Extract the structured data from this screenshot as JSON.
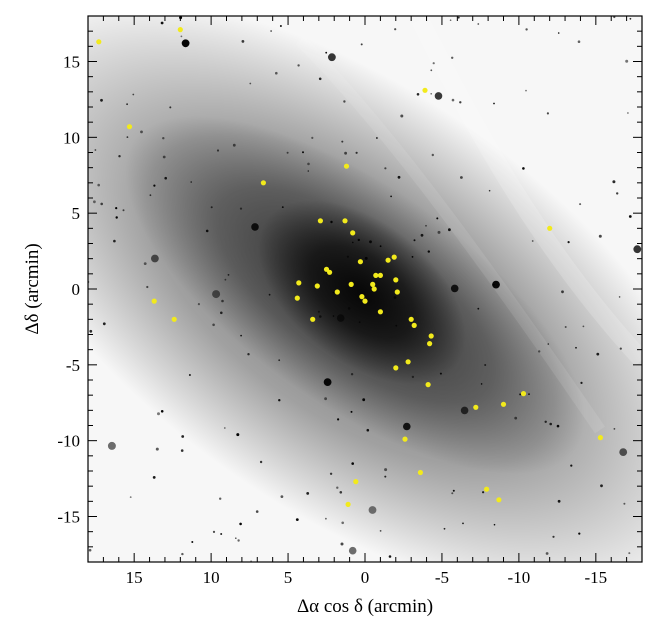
{
  "chart_data": {
    "type": "scatter",
    "title": "",
    "xlabel": "Δα cos δ  (arcmin)",
    "ylabel": "Δδ  (arcmin)",
    "xlim": [
      18,
      -18
    ],
    "ylim": [
      -18,
      18
    ],
    "x_ticks": [
      15,
      10,
      5,
      0,
      -5,
      -10,
      -15
    ],
    "y_ticks": [
      15,
      10,
      5,
      0,
      -5,
      -10,
      -15
    ],
    "x_tick_labels": [
      "15",
      "10",
      "5",
      "0",
      "-5",
      "-10",
      "-15"
    ],
    "y_tick_labels": [
      "15",
      "10",
      "5",
      "0",
      "-5",
      "-10",
      "-15"
    ],
    "grid": false,
    "background": "greyscale galaxy image",
    "marker_color": "#f2ea1c",
    "points": [
      [
        17.3,
        16.3
      ],
      [
        12.0,
        17.1
      ],
      [
        15.3,
        10.7
      ],
      [
        -3.9,
        13.1
      ],
      [
        1.2,
        8.1
      ],
      [
        6.6,
        7.0
      ],
      [
        -12.0,
        4.0
      ],
      [
        2.9,
        4.5
      ],
      [
        1.3,
        4.5
      ],
      [
        0.8,
        3.7
      ],
      [
        -1.9,
        2.1
      ],
      [
        -1.5,
        1.9
      ],
      [
        0.3,
        1.8
      ],
      [
        2.5,
        1.3
      ],
      [
        2.3,
        1.1
      ],
      [
        -0.7,
        0.9
      ],
      [
        -1.0,
        0.9
      ],
      [
        -2.0,
        0.6
      ],
      [
        0.9,
        0.3
      ],
      [
        -0.5,
        0.3
      ],
      [
        4.3,
        0.4
      ],
      [
        3.1,
        0.2
      ],
      [
        -0.6,
        0.0
      ],
      [
        1.8,
        -0.2
      ],
      [
        -2.1,
        -0.2
      ],
      [
        4.4,
        -0.6
      ],
      [
        0.2,
        -0.5
      ],
      [
        0.0,
        -0.8
      ],
      [
        13.7,
        -0.8
      ],
      [
        12.4,
        -2.0
      ],
      [
        -1.0,
        -1.5
      ],
      [
        3.4,
        -2.0
      ],
      [
        -3.0,
        -2.0
      ],
      [
        -3.2,
        -2.4
      ],
      [
        -4.3,
        -3.1
      ],
      [
        -4.2,
        -3.6
      ],
      [
        -2.8,
        -4.8
      ],
      [
        -2.0,
        -5.2
      ],
      [
        -4.1,
        -6.3
      ],
      [
        -10.3,
        -6.9
      ],
      [
        -7.2,
        -7.8
      ],
      [
        -9.0,
        -7.6
      ],
      [
        -2.6,
        -9.9
      ],
      [
        -15.3,
        -9.8
      ],
      [
        -3.6,
        -12.1
      ],
      [
        0.6,
        -12.7
      ],
      [
        -7.9,
        -13.2
      ],
      [
        -8.7,
        -13.9
      ],
      [
        1.1,
        -14.2
      ]
    ]
  }
}
